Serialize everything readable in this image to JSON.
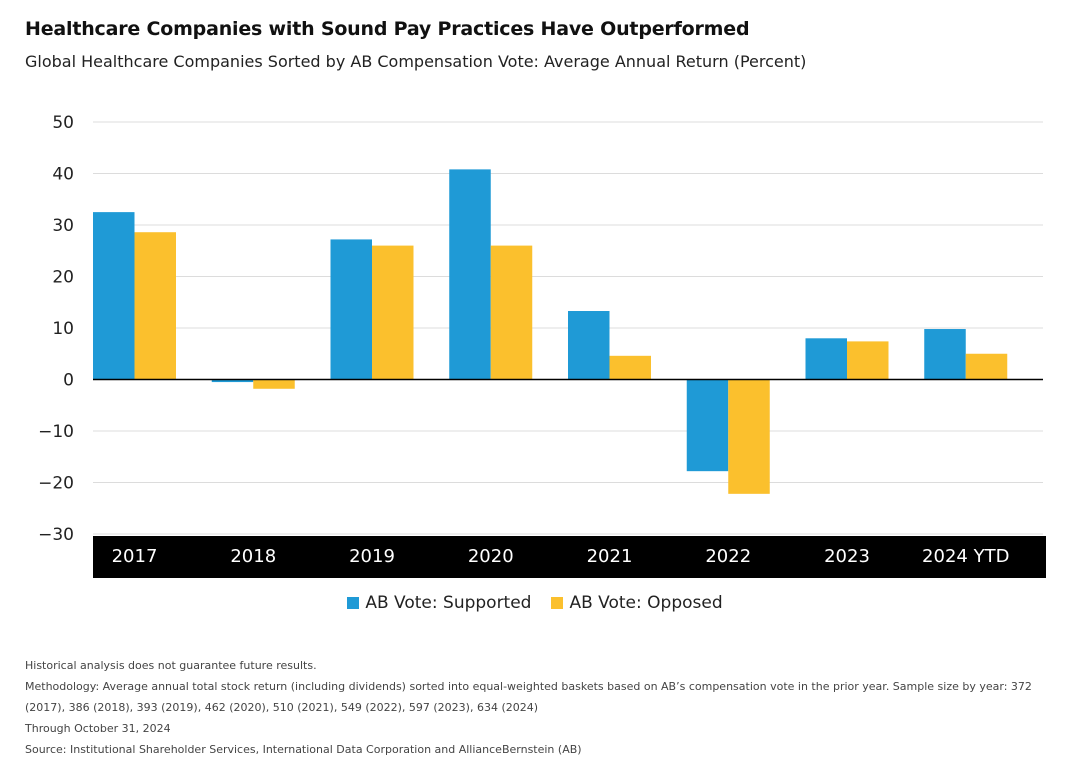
{
  "header": {
    "title": "Healthcare Companies with Sound Pay Practices Have Outperformed",
    "subtitle": "Global Healthcare Companies Sorted by AB Compensation Vote: Average Annual Return (Percent)"
  },
  "chart_data": {
    "type": "bar",
    "categories": [
      "2017",
      "2018",
      "2019",
      "2020",
      "2021",
      "2022",
      "2023",
      "2024 YTD"
    ],
    "series": [
      {
        "name": "AB Vote: Supported",
        "color": "#1f9ad6",
        "values": [
          32.5,
          -0.5,
          27.2,
          40.8,
          13.3,
          -17.8,
          8.0,
          9.8
        ]
      },
      {
        "name": "AB Vote: Opposed",
        "color": "#fbc02d",
        "values": [
          28.6,
          -1.8,
          26.0,
          26.0,
          4.6,
          -22.2,
          7.4,
          5.0
        ]
      }
    ],
    "title": "",
    "xlabel": "",
    "ylabel": "",
    "ylim": [
      -30,
      50
    ],
    "yticks": [
      50,
      40,
      30,
      20,
      10,
      0,
      -10,
      -20,
      -30
    ],
    "ytick_labels": [
      "50",
      "40",
      "30",
      "20",
      "10",
      "0",
      "−10",
      "−20",
      "−30"
    ],
    "grid": true,
    "legend_position": "bottom-center",
    "category_band_color": "#000000"
  },
  "footnotes": {
    "disclaimer": "Historical analysis does not guarantee future results.",
    "methodology": "Methodology: Average annual total stock return (including dividends) sorted into equal-weighted baskets based on AB’s compensation vote in the prior year. Sample size by year: 372 (2017), 386 (2018), 393 (2019), 462 (2020), 510 (2021), 549 (2022), 597 (2023), 634 (2024)",
    "through": "Through October 31, 2024",
    "source": "Source: Institutional Shareholder Services, International Data Corporation and AllianceBernstein (AB)"
  }
}
